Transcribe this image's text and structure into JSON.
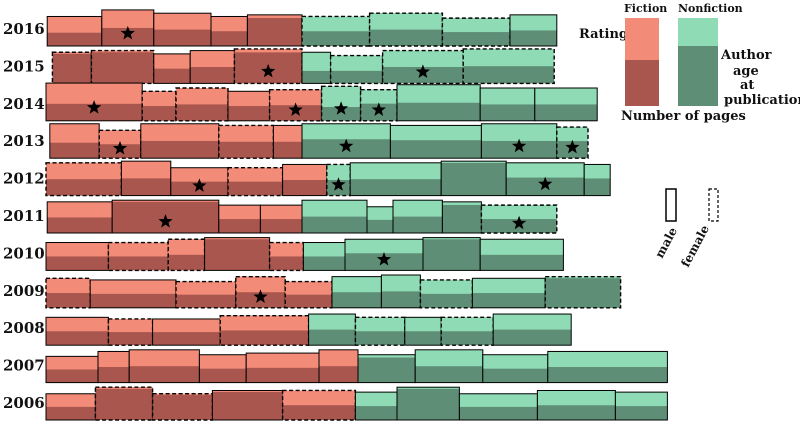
{
  "chart_data": {
    "type": "bar",
    "title": "",
    "legend": {
      "fiction_label": "Fiction",
      "nonfiction_label": "Nonfiction",
      "rating_label": "Rating",
      "pages_label": "Number of pages",
      "age_label_lines": [
        "Author",
        "age",
        "at",
        "publication"
      ],
      "male_label": "male",
      "female_label": "female"
    },
    "colors": {
      "fiction_light": "#f28b78",
      "fiction_dark": "#a8564e",
      "nonfiction_light": "#8fdbb5",
      "nonfiction_dark": "#5e8f76"
    },
    "rows": [
      {
        "year": "2016",
        "fiction": [
          {
            "pages": 210,
            "rating": 0.55,
            "age": 36,
            "gender": "male",
            "star": false
          },
          {
            "pages": 200,
            "rating": 0.5,
            "age": 44,
            "gender": "male",
            "star": true
          },
          {
            "pages": 220,
            "rating": 0.5,
            "age": 40,
            "gender": "male",
            "star": false
          },
          {
            "pages": 140,
            "rating": 0.5,
            "age": 36,
            "gender": "male",
            "star": false
          },
          {
            "pages": 210,
            "rating": 0.1,
            "age": 38,
            "gender": "male",
            "star": false
          }
        ],
        "nonfiction": [
          {
            "pages": 260,
            "rating": 0.5,
            "age": 36,
            "gender": "female",
            "star": false
          },
          {
            "pages": 280,
            "rating": 0.5,
            "age": 40,
            "gender": "female",
            "star": false
          },
          {
            "pages": 260,
            "rating": 0.5,
            "age": 34,
            "gender": "female",
            "star": false
          },
          {
            "pages": 180,
            "rating": 0.5,
            "age": 38,
            "gender": "male",
            "star": false
          }
        ]
      },
      {
        "year": "2015",
        "fiction": [
          {
            "pages": 150,
            "rating": 0.05,
            "age": 38,
            "gender": "female",
            "star": false
          },
          {
            "pages": 240,
            "rating": 0.05,
            "age": 40,
            "gender": "female",
            "star": false
          },
          {
            "pages": 140,
            "rating": 0.5,
            "age": 36,
            "gender": "male",
            "star": false
          },
          {
            "pages": 170,
            "rating": 0.5,
            "age": 40,
            "gender": "male",
            "star": false
          },
          {
            "pages": 260,
            "rating": 0.1,
            "age": 42,
            "gender": "female",
            "star": true
          }
        ],
        "nonfiction": [
          {
            "pages": 110,
            "rating": 0.6,
            "age": 38,
            "gender": "male",
            "star": false
          },
          {
            "pages": 200,
            "rating": 0.55,
            "age": 34,
            "gender": "female",
            "star": false
          },
          {
            "pages": 310,
            "rating": 0.5,
            "age": 40,
            "gender": "female",
            "star": true
          },
          {
            "pages": 350,
            "rating": 0.5,
            "age": 42,
            "gender": "female",
            "star": false
          }
        ]
      },
      {
        "year": "2014",
        "fiction": [
          {
            "pages": 370,
            "rating": 0.55,
            "age": 46,
            "gender": "male",
            "star": true
          },
          {
            "pages": 130,
            "rating": 0.5,
            "age": 36,
            "gender": "female",
            "star": false
          },
          {
            "pages": 200,
            "rating": 0.5,
            "age": 40,
            "gender": "female",
            "star": false
          },
          {
            "pages": 160,
            "rating": 0.5,
            "age": 36,
            "gender": "male",
            "star": false
          },
          {
            "pages": 200,
            "rating": 0.5,
            "age": 38,
            "gender": "female",
            "star": true
          }
        ],
        "nonfiction": [
          {
            "pages": 150,
            "rating": 0.6,
            "age": 42,
            "gender": "female",
            "star": true
          },
          {
            "pages": 140,
            "rating": 0.45,
            "age": 38,
            "gender": "female",
            "star": true
          },
          {
            "pages": 320,
            "rating": 0.5,
            "age": 44,
            "gender": "male",
            "star": false
          },
          {
            "pages": 210,
            "rating": 0.5,
            "age": 40,
            "gender": "male",
            "star": false
          },
          {
            "pages": 240,
            "rating": 0.5,
            "age": 40,
            "gender": "male",
            "star": false
          }
        ]
      },
      {
        "year": "2013",
        "fiction": [
          {
            "pages": 190,
            "rating": 0.55,
            "age": 42,
            "gender": "male",
            "star": false
          },
          {
            "pages": 160,
            "rating": 0.5,
            "age": 34,
            "gender": "female",
            "star": true
          },
          {
            "pages": 300,
            "rating": 0.5,
            "age": 42,
            "gender": "male",
            "star": false
          },
          {
            "pages": 210,
            "rating": 0.5,
            "age": 40,
            "gender": "female",
            "star": false
          },
          {
            "pages": 110,
            "rating": 0.5,
            "age": 40,
            "gender": "male",
            "star": false
          }
        ],
        "nonfiction": [
          {
            "pages": 340,
            "rating": 0.45,
            "age": 42,
            "gender": "male",
            "star": true
          },
          {
            "pages": 350,
            "rating": 0.45,
            "age": 40,
            "gender": "male",
            "star": false
          },
          {
            "pages": 290,
            "rating": 0.5,
            "age": 42,
            "gender": "male",
            "star": true
          },
          {
            "pages": 120,
            "rating": 0.45,
            "age": 38,
            "gender": "female",
            "star": true
          }
        ]
      },
      {
        "year": "2012",
        "fiction": [
          {
            "pages": 290,
            "rating": 0.5,
            "age": 40,
            "gender": "female",
            "star": false
          },
          {
            "pages": 190,
            "rating": 0.5,
            "age": 42,
            "gender": "male",
            "star": false
          },
          {
            "pages": 220,
            "rating": 0.5,
            "age": 34,
            "gender": "male",
            "star": true
          },
          {
            "pages": 210,
            "rating": 0.5,
            "age": 34,
            "gender": "female",
            "star": false
          },
          {
            "pages": 170,
            "rating": 0.5,
            "age": 38,
            "gender": "male",
            "star": false
          }
        ],
        "nonfiction": [
          {
            "pages": 90,
            "rating": 0.5,
            "age": 38,
            "gender": "female",
            "star": true
          },
          {
            "pages": 350,
            "rating": 0.5,
            "age": 40,
            "gender": "male",
            "star": false
          },
          {
            "pages": 250,
            "rating": 0.05,
            "age": 42,
            "gender": "male",
            "star": false
          },
          {
            "pages": 300,
            "rating": 0.45,
            "age": 40,
            "gender": "male",
            "star": true
          },
          {
            "pages": 100,
            "rating": 0.45,
            "age": 38,
            "gender": "male",
            "star": false
          }
        ]
      },
      {
        "year": "2011",
        "fiction": [
          {
            "pages": 250,
            "rating": 0.5,
            "age": 38,
            "gender": "male",
            "star": false
          },
          {
            "pages": 410,
            "rating": 0.05,
            "age": 40,
            "gender": "male",
            "star": true
          },
          {
            "pages": 160,
            "rating": 0.5,
            "age": 34,
            "gender": "male",
            "star": false
          },
          {
            "pages": 160,
            "rating": 0.5,
            "age": 34,
            "gender": "male",
            "star": false
          }
        ],
        "nonfiction": [
          {
            "pages": 250,
            "rating": 0.5,
            "age": 40,
            "gender": "male",
            "star": false
          },
          {
            "pages": 100,
            "rating": 0.5,
            "age": 32,
            "gender": "male",
            "star": false
          },
          {
            "pages": 190,
            "rating": 0.5,
            "age": 40,
            "gender": "male",
            "star": false
          },
          {
            "pages": 150,
            "rating": 0.1,
            "age": 38,
            "gender": "male",
            "star": false
          },
          {
            "pages": 290,
            "rating": 0.5,
            "age": 34,
            "gender": "female",
            "star": true
          }
        ]
      },
      {
        "year": "2010",
        "fiction": [
          {
            "pages": 240,
            "rating": 0.5,
            "age": 34,
            "gender": "male",
            "star": false
          },
          {
            "pages": 230,
            "rating": 0.5,
            "age": 34,
            "gender": "female",
            "star": false
          },
          {
            "pages": 140,
            "rating": 0.5,
            "age": 38,
            "gender": "female",
            "star": false
          },
          {
            "pages": 250,
            "rating": 0.05,
            "age": 40,
            "gender": "male",
            "star": false
          },
          {
            "pages": 130,
            "rating": 0.5,
            "age": 34,
            "gender": "female",
            "star": false
          }
        ],
        "nonfiction": [
          {
            "pages": 160,
            "rating": 0.5,
            "age": 34,
            "gender": "male",
            "star": false
          },
          {
            "pages": 300,
            "rating": 0.45,
            "age": 38,
            "gender": "male",
            "star": true
          },
          {
            "pages": 220,
            "rating": 0.05,
            "age": 40,
            "gender": "male",
            "star": false
          },
          {
            "pages": 320,
            "rating": 0.5,
            "age": 38,
            "gender": "male",
            "star": false
          }
        ]
      },
      {
        "year": "2009",
        "fiction": [
          {
            "pages": 170,
            "rating": 0.5,
            "age": 36,
            "gender": "female",
            "star": false
          },
          {
            "pages": 330,
            "rating": 0.5,
            "age": 34,
            "gender": "male",
            "star": false
          },
          {
            "pages": 230,
            "rating": 0.5,
            "age": 32,
            "gender": "female",
            "star": false
          },
          {
            "pages": 190,
            "rating": 0.5,
            "age": 38,
            "gender": "female",
            "star": true
          },
          {
            "pages": 180,
            "rating": 0.5,
            "age": 32,
            "gender": "female",
            "star": false
          }
        ],
        "nonfiction": [
          {
            "pages": 190,
            "rating": 0.5,
            "age": 38,
            "gender": "male",
            "star": false
          },
          {
            "pages": 150,
            "rating": 0.5,
            "age": 40,
            "gender": "male",
            "star": false
          },
          {
            "pages": 200,
            "rating": 0.5,
            "age": 34,
            "gender": "female",
            "star": false
          },
          {
            "pages": 280,
            "rating": 0.5,
            "age": 36,
            "gender": "male",
            "star": false
          },
          {
            "pages": 290,
            "rating": 0.05,
            "age": 38,
            "gender": "female",
            "star": false
          }
        ]
      },
      {
        "year": "2008",
        "fiction": [
          {
            "pages": 240,
            "rating": 0.5,
            "age": 34,
            "gender": "male",
            "star": false
          },
          {
            "pages": 170,
            "rating": 0.5,
            "age": 32,
            "gender": "female",
            "star": false
          },
          {
            "pages": 260,
            "rating": 0.5,
            "age": 32,
            "gender": "male",
            "star": false
          },
          {
            "pages": 340,
            "rating": 0.5,
            "age": 36,
            "gender": "female",
            "star": false
          }
        ],
        "nonfiction": [
          {
            "pages": 180,
            "rating": 0.5,
            "age": 38,
            "gender": "male",
            "star": false
          },
          {
            "pages": 190,
            "rating": 0.5,
            "age": 34,
            "gender": "female",
            "star": false
          },
          {
            "pages": 140,
            "rating": 0.5,
            "age": 34,
            "gender": "male",
            "star": false
          },
          {
            "pages": 200,
            "rating": 0.5,
            "age": 34,
            "gender": "female",
            "star": false
          },
          {
            "pages": 300,
            "rating": 0.5,
            "age": 38,
            "gender": "male",
            "star": false
          }
        ]
      },
      {
        "year": "2007",
        "fiction": [
          {
            "pages": 200,
            "rating": 0.5,
            "age": 32,
            "gender": "male",
            "star": false
          },
          {
            "pages": 120,
            "rating": 0.5,
            "age": 38,
            "gender": "male",
            "star": false
          },
          {
            "pages": 270,
            "rating": 0.5,
            "age": 40,
            "gender": "male",
            "star": false
          },
          {
            "pages": 180,
            "rating": 0.5,
            "age": 34,
            "gender": "male",
            "star": false
          },
          {
            "pages": 280,
            "rating": 0.5,
            "age": 36,
            "gender": "male",
            "star": false
          },
          {
            "pages": 150,
            "rating": 0.5,
            "age": 40,
            "gender": "male",
            "star": false
          }
        ],
        "nonfiction": [
          {
            "pages": 220,
            "rating": 0.1,
            "age": 34,
            "gender": "male",
            "star": false
          },
          {
            "pages": 260,
            "rating": 0.5,
            "age": 40,
            "gender": "male",
            "star": false
          },
          {
            "pages": 250,
            "rating": 0.5,
            "age": 34,
            "gender": "male",
            "star": false
          },
          {
            "pages": 460,
            "rating": 0.5,
            "age": 38,
            "gender": "male",
            "star": false
          }
        ]
      },
      {
        "year": "2006",
        "fiction": [
          {
            "pages": 190,
            "rating": 0.5,
            "age": 32,
            "gender": "male",
            "star": false
          },
          {
            "pages": 220,
            "rating": 0.05,
            "age": 40,
            "gender": "female",
            "star": false
          },
          {
            "pages": 230,
            "rating": 0.05,
            "age": 32,
            "gender": "female",
            "star": false
          },
          {
            "pages": 270,
            "rating": 0.05,
            "age": 36,
            "gender": "male",
            "star": false
          },
          {
            "pages": 280,
            "rating": 0.5,
            "age": 36,
            "gender": "female",
            "star": false
          }
        ],
        "nonfiction": [
          {
            "pages": 160,
            "rating": 0.5,
            "age": 34,
            "gender": "male",
            "star": false
          },
          {
            "pages": 240,
            "rating": 0.05,
            "age": 40,
            "gender": "male",
            "star": false
          },
          {
            "pages": 300,
            "rating": 0.5,
            "age": 32,
            "gender": "male",
            "star": false
          },
          {
            "pages": 300,
            "rating": 0.5,
            "age": 36,
            "gender": "male",
            "star": false
          },
          {
            "pages": 200,
            "rating": 0.5,
            "age": 34,
            "gender": "male",
            "star": false
          }
        ]
      }
    ]
  }
}
